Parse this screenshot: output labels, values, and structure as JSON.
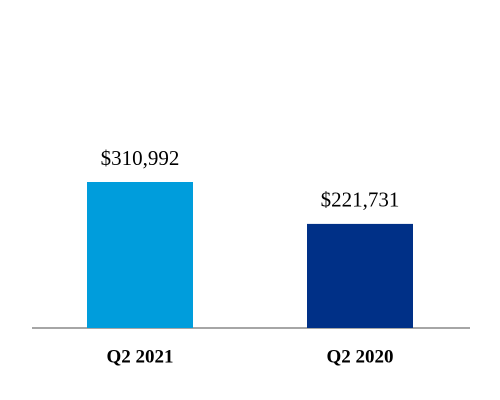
{
  "chart_data": {
    "type": "bar",
    "categories": [
      "Q2 2021",
      "Q2 2020"
    ],
    "values": [
      310992,
      221731
    ],
    "value_labels": [
      "$310,992",
      "$221,731"
    ],
    "colors": [
      "#009ddc",
      "#003087"
    ]
  }
}
